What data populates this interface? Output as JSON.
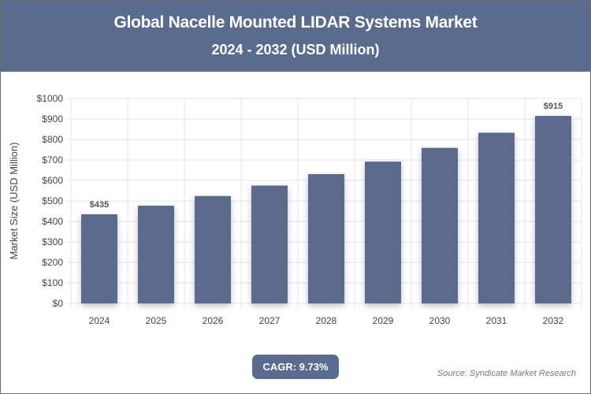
{
  "header": {
    "title": "Global Nacelle Mounted LIDAR Systems Market",
    "subtitle": "2024 - 2032 (USD Million)"
  },
  "footer": {
    "cagr": "CAGR: 9.73%",
    "source": "Source: Syndicate Market Research"
  },
  "colors": {
    "bar": "#5b6b8e",
    "header": "#5b6b8e"
  },
  "chart_data": {
    "type": "bar",
    "title": "Global Nacelle Mounted LIDAR Systems Market 2024 - 2032 (USD Million)",
    "xlabel": "",
    "ylabel": "Market Size (USD Million)",
    "categories": [
      "2024",
      "2025",
      "2026",
      "2027",
      "2028",
      "2029",
      "2030",
      "2031",
      "2032"
    ],
    "values": [
      435,
      477,
      524,
      575,
      631,
      692,
      759,
      833,
      915
    ],
    "data_labels": {
      "0": "$435",
      "8": "$915"
    },
    "ylim": [
      0,
      1000
    ],
    "yticks": [
      0,
      100,
      200,
      300,
      400,
      500,
      600,
      700,
      800,
      900,
      1000
    ],
    "ytick_labels": [
      "$0",
      "$100",
      "$200",
      "$300",
      "$400",
      "$500",
      "$600",
      "$700",
      "$800",
      "$900",
      "$1000"
    ],
    "grid": true
  }
}
